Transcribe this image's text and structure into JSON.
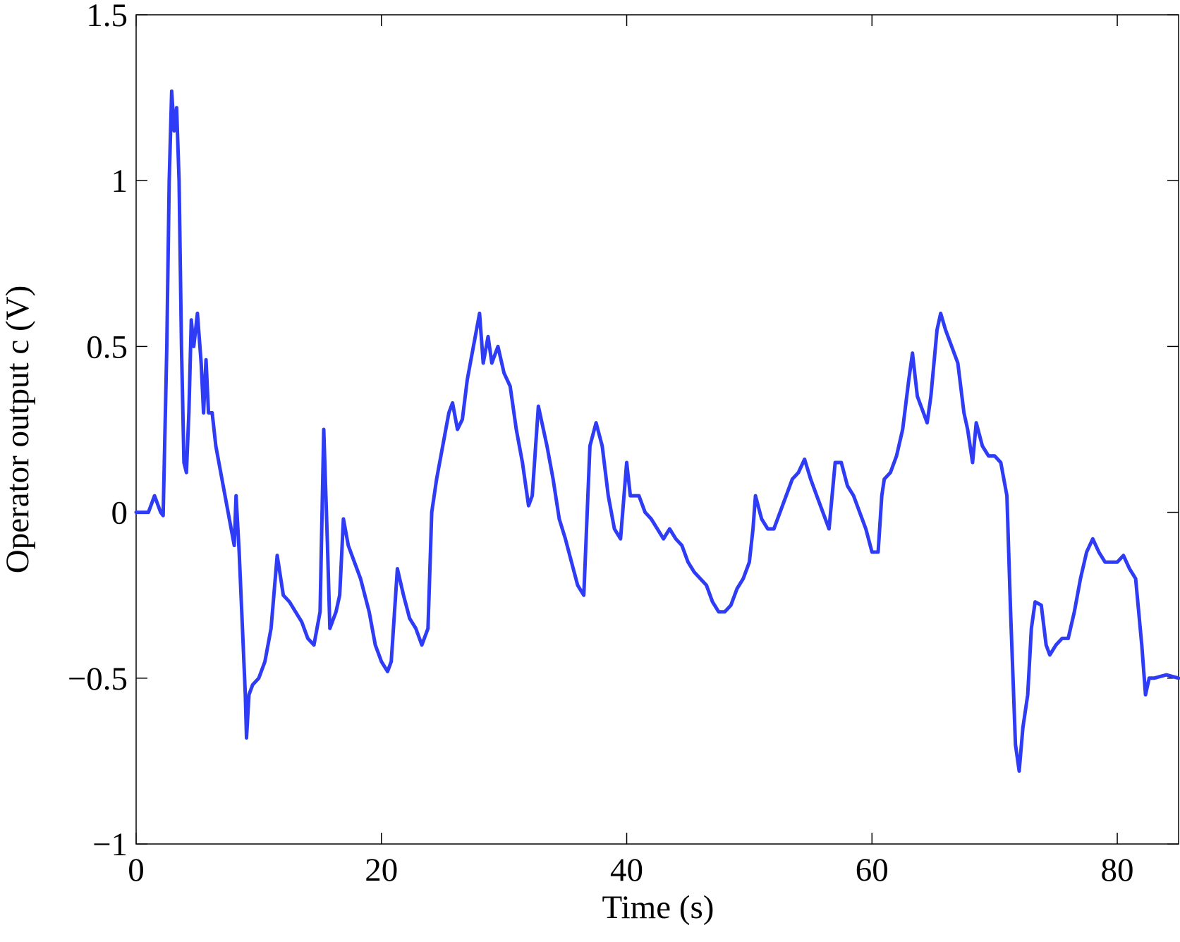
{
  "chart_data": {
    "type": "line",
    "x_label": "Time (s)",
    "y_label": "Operator output  c (V)",
    "xlim": [
      0,
      85
    ],
    "ylim": [
      -1,
      1.5
    ],
    "xticks": [
      0,
      20,
      40,
      60,
      80
    ],
    "yticks": [
      {
        "value": -1,
        "label": "−1"
      },
      {
        "value": -0.5,
        "label": "−0.5"
      },
      0,
      0.5,
      1,
      1.5
    ],
    "grid": false,
    "series": [
      {
        "color": "#2f3cf5",
        "x": [
          0,
          1,
          1.5,
          2,
          2.2,
          2.5,
          2.7,
          2.9,
          3.1,
          3.3,
          3.5,
          3.7,
          3.9,
          4.1,
          4.3,
          4.5,
          4.7,
          5.0,
          5.3,
          5.5,
          5.7,
          5.9,
          6.2,
          6.5,
          7.0,
          7.5,
          8.0,
          8.15,
          8.4,
          8.9,
          9.0,
          9.2,
          9.5,
          10,
          10.5,
          11,
          11.5,
          12,
          12.5,
          13,
          13.5,
          14,
          14.5,
          15,
          15.3,
          15.6,
          15.8,
          16.3,
          16.6,
          16.9,
          17.3,
          17.8,
          18.3,
          19,
          19.5,
          20,
          20.5,
          20.8,
          21.3,
          21.8,
          22.3,
          22.8,
          23.3,
          23.8,
          24.1,
          24.5,
          25,
          25.5,
          25.8,
          26.2,
          26.6,
          27,
          27.5,
          28,
          28.3,
          28.7,
          29,
          29.5,
          30,
          30.5,
          31,
          31.5,
          32,
          32.3,
          32.8,
          33.5,
          34,
          34.5,
          35,
          35.5,
          36,
          36.5,
          37,
          37.5,
          38,
          38.5,
          39,
          39.5,
          40,
          40.3,
          41,
          41.5,
          42,
          42.5,
          43,
          43.5,
          44,
          44.5,
          45,
          45.5,
          46,
          46.5,
          47,
          47.5,
          48,
          48.5,
          49,
          49.5,
          50,
          50.3,
          50.5,
          51,
          51.5,
          52,
          52.5,
          53,
          53.5,
          54,
          54.5,
          55,
          55.5,
          56,
          56.5,
          57,
          57.5,
          58,
          58.5,
          59,
          59.5,
          60,
          60.5,
          60.8,
          61,
          61.5,
          62,
          62.5,
          63,
          63.3,
          63.7,
          64.2,
          64.5,
          64.8,
          65.3,
          65.6,
          66,
          66.5,
          67,
          67.5,
          67.8,
          68.2,
          68.5,
          69,
          69.5,
          70,
          70.5,
          71,
          71.3,
          71.7,
          72,
          72.3,
          72.7,
          73,
          73.3,
          73.8,
          74.2,
          74.5,
          75,
          75.5,
          76,
          76.5,
          77,
          77.5,
          78,
          78.5,
          79,
          79.5,
          80,
          80.5,
          81,
          81.5,
          82,
          82.3,
          82.6,
          83,
          84,
          85
        ],
        "values": [
          0,
          0,
          0.05,
          0,
          -0.01,
          0.5,
          1.0,
          1.27,
          1.15,
          1.22,
          1.0,
          0.5,
          0.15,
          0.12,
          0.3,
          0.58,
          0.5,
          0.6,
          0.45,
          0.3,
          0.46,
          0.3,
          0.3,
          0.2,
          0.1,
          0,
          -0.1,
          0.05,
          -0.12,
          -0.55,
          -0.68,
          -0.55,
          -0.52,
          -0.5,
          -0.45,
          -0.35,
          -0.13,
          -0.25,
          -0.27,
          -0.3,
          -0.33,
          -0.38,
          -0.4,
          -0.3,
          0.25,
          -0.1,
          -0.35,
          -0.3,
          -0.25,
          -0.02,
          -0.1,
          -0.15,
          -0.2,
          -0.3,
          -0.4,
          -0.45,
          -0.48,
          -0.45,
          -0.17,
          -0.25,
          -0.32,
          -0.35,
          -0.4,
          -0.35,
          0,
          0.1,
          0.2,
          0.3,
          0.33,
          0.25,
          0.28,
          0.4,
          0.5,
          0.6,
          0.45,
          0.53,
          0.45,
          0.5,
          0.42,
          0.38,
          0.25,
          0.15,
          0.02,
          0.05,
          0.32,
          0.2,
          0.1,
          -0.02,
          -0.08,
          -0.15,
          -0.22,
          -0.25,
          0.2,
          0.27,
          0.2,
          0.05,
          -0.05,
          -0.08,
          0.15,
          0.05,
          0.05,
          0,
          -0.02,
          -0.05,
          -0.08,
          -0.05,
          -0.08,
          -0.1,
          -0.15,
          -0.18,
          -0.2,
          -0.22,
          -0.27,
          -0.3,
          -0.3,
          -0.28,
          -0.23,
          -0.2,
          -0.15,
          -0.05,
          0.05,
          -0.02,
          -0.05,
          -0.05,
          0,
          0.05,
          0.1,
          0.12,
          0.16,
          0.1,
          0.05,
          0,
          -0.05,
          0.15,
          0.15,
          0.08,
          0.05,
          0,
          -0.05,
          -0.12,
          -0.12,
          0.05,
          0.1,
          0.12,
          0.17,
          0.25,
          0.4,
          0.48,
          0.35,
          0.3,
          0.27,
          0.35,
          0.55,
          0.6,
          0.55,
          0.5,
          0.45,
          0.3,
          0.25,
          0.15,
          0.27,
          0.2,
          0.17,
          0.17,
          0.15,
          0.05,
          -0.3,
          -0.7,
          -0.78,
          -0.65,
          -0.55,
          -0.35,
          -0.27,
          -0.28,
          -0.4,
          -0.43,
          -0.4,
          -0.38,
          -0.38,
          -0.3,
          -0.2,
          -0.12,
          -0.08,
          -0.12,
          -0.15,
          -0.15,
          -0.15,
          -0.13,
          -0.17,
          -0.2,
          -0.4,
          -0.55,
          -0.5,
          -0.5,
          -0.49,
          -0.5
        ]
      }
    ]
  }
}
